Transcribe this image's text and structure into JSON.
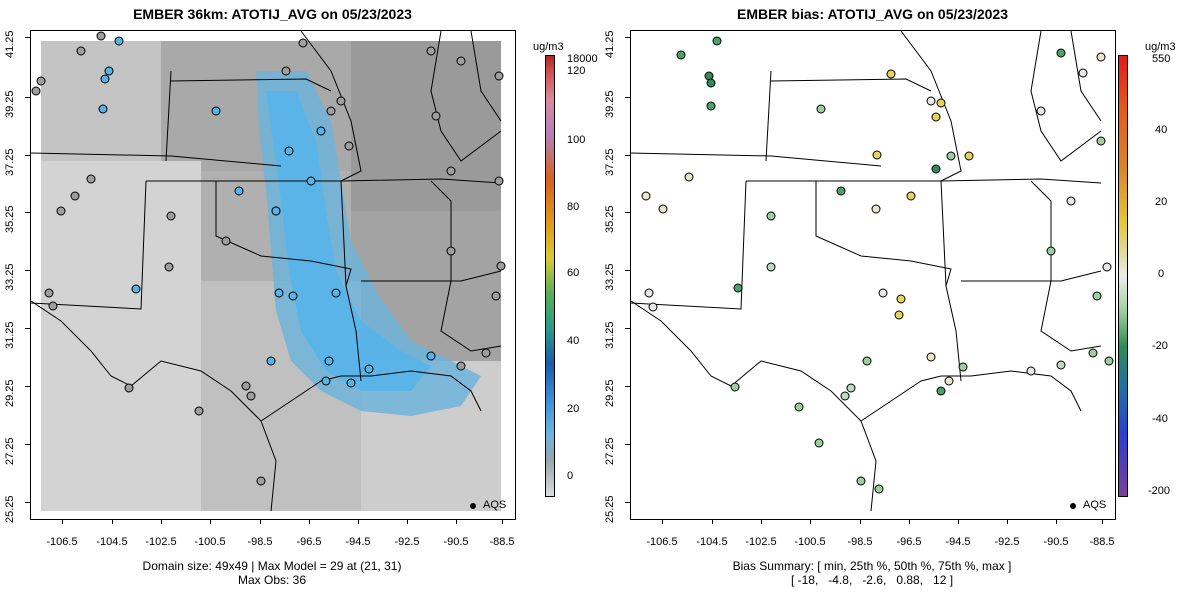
{
  "left_panel": {
    "title": "EMBER 36km: ATOTIJ_AVG on 05/23/2023",
    "footer_line1": "Domain size: 49x49 | Max Model = 29 at (21, 31)",
    "footer_line2": "Max Obs: 36",
    "colorbar_unit": "ug/m3",
    "colorbar_ticks": [
      "18000",
      "120",
      "100",
      "80",
      "60",
      "40",
      "20",
      "0"
    ],
    "legend_label": "AQS"
  },
  "right_panel": {
    "title": "EMBER bias: ATOTIJ_AVG on 05/23/2023",
    "footer_line1": "Bias Summary: [ min, 25th %, 50th %, 75th %, max ]",
    "footer_line2": "[ -18,   -4.8,   -2.6,   0.88,   12 ]",
    "colorbar_unit": "ug/m3",
    "colorbar_ticks": [
      "550",
      "40",
      "20",
      "0",
      "-20",
      "-40",
      "-200"
    ],
    "legend_label": "AQS"
  },
  "axes": {
    "x_ticks": [
      "-106.5",
      "-104.5",
      "-102.5",
      "-100.5",
      "-98.5",
      "-96.5",
      "-94.5",
      "-92.5",
      "-90.5",
      "-88.5"
    ],
    "y_ticks": [
      "41.25",
      "39.25",
      "37.25",
      "35.25",
      "33.25",
      "31.25",
      "29.25",
      "27.25",
      "25.25"
    ]
  },
  "colors": {
    "model_high": "#56b4e9",
    "model_mid": "#9e9e9e",
    "model_low": "#d9d9d9",
    "bias_pos": "#e6d35a",
    "bias_neg": "#4aa36b",
    "bias_zero": "#e8e8e8"
  }
}
